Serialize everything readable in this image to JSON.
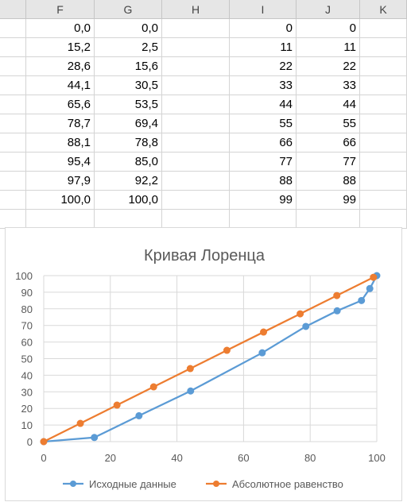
{
  "columns": [
    "F",
    "G",
    "H",
    "I",
    "J",
    "K"
  ],
  "rows": [
    {
      "F": "0,0",
      "G": "0,0",
      "I": "0",
      "J": "0"
    },
    {
      "F": "15,2",
      "G": "2,5",
      "I": "11",
      "J": "11"
    },
    {
      "F": "28,6",
      "G": "15,6",
      "I": "22",
      "J": "22"
    },
    {
      "F": "44,1",
      "G": "30,5",
      "I": "33",
      "J": "33"
    },
    {
      "F": "65,6",
      "G": "53,5",
      "I": "44",
      "J": "44"
    },
    {
      "F": "78,7",
      "G": "69,4",
      "I": "55",
      "J": "55"
    },
    {
      "F": "88,1",
      "G": "78,8",
      "I": "66",
      "J": "66"
    },
    {
      "F": "95,4",
      "G": "85,0",
      "I": "77",
      "J": "77"
    },
    {
      "F": "97,9",
      "G": "92,2",
      "I": "88",
      "J": "88"
    },
    {
      "F": "100,0",
      "G": "100,0",
      "I": "99",
      "J": "99"
    },
    {
      "F": "",
      "G": "",
      "I": "",
      "J": ""
    }
  ],
  "chart_data": {
    "type": "line",
    "title": "Кривая Лоренца",
    "xlim": [
      0,
      100
    ],
    "ylim": [
      0,
      100
    ],
    "x_ticks": [
      0,
      20,
      40,
      60,
      80,
      100
    ],
    "y_ticks": [
      0,
      10,
      20,
      30,
      40,
      50,
      60,
      70,
      80,
      90,
      100
    ],
    "grid": true,
    "legend_position": "bottom",
    "series": [
      {
        "name": "Исходные данные",
        "color": "#5b9bd5",
        "x": [
          0,
          15.2,
          28.6,
          44.1,
          65.6,
          78.7,
          88.1,
          95.4,
          97.9,
          100
        ],
        "y": [
          0,
          2.5,
          15.6,
          30.5,
          53.5,
          69.4,
          78.8,
          85.0,
          92.2,
          100
        ]
      },
      {
        "name": "Абсолютное равенство",
        "color": "#ed7d31",
        "x": [
          0,
          11,
          22,
          33,
          44,
          55,
          66,
          77,
          88,
          99
        ],
        "y": [
          0,
          11,
          22,
          33,
          44,
          55,
          66,
          77,
          88,
          99
        ]
      }
    ]
  }
}
